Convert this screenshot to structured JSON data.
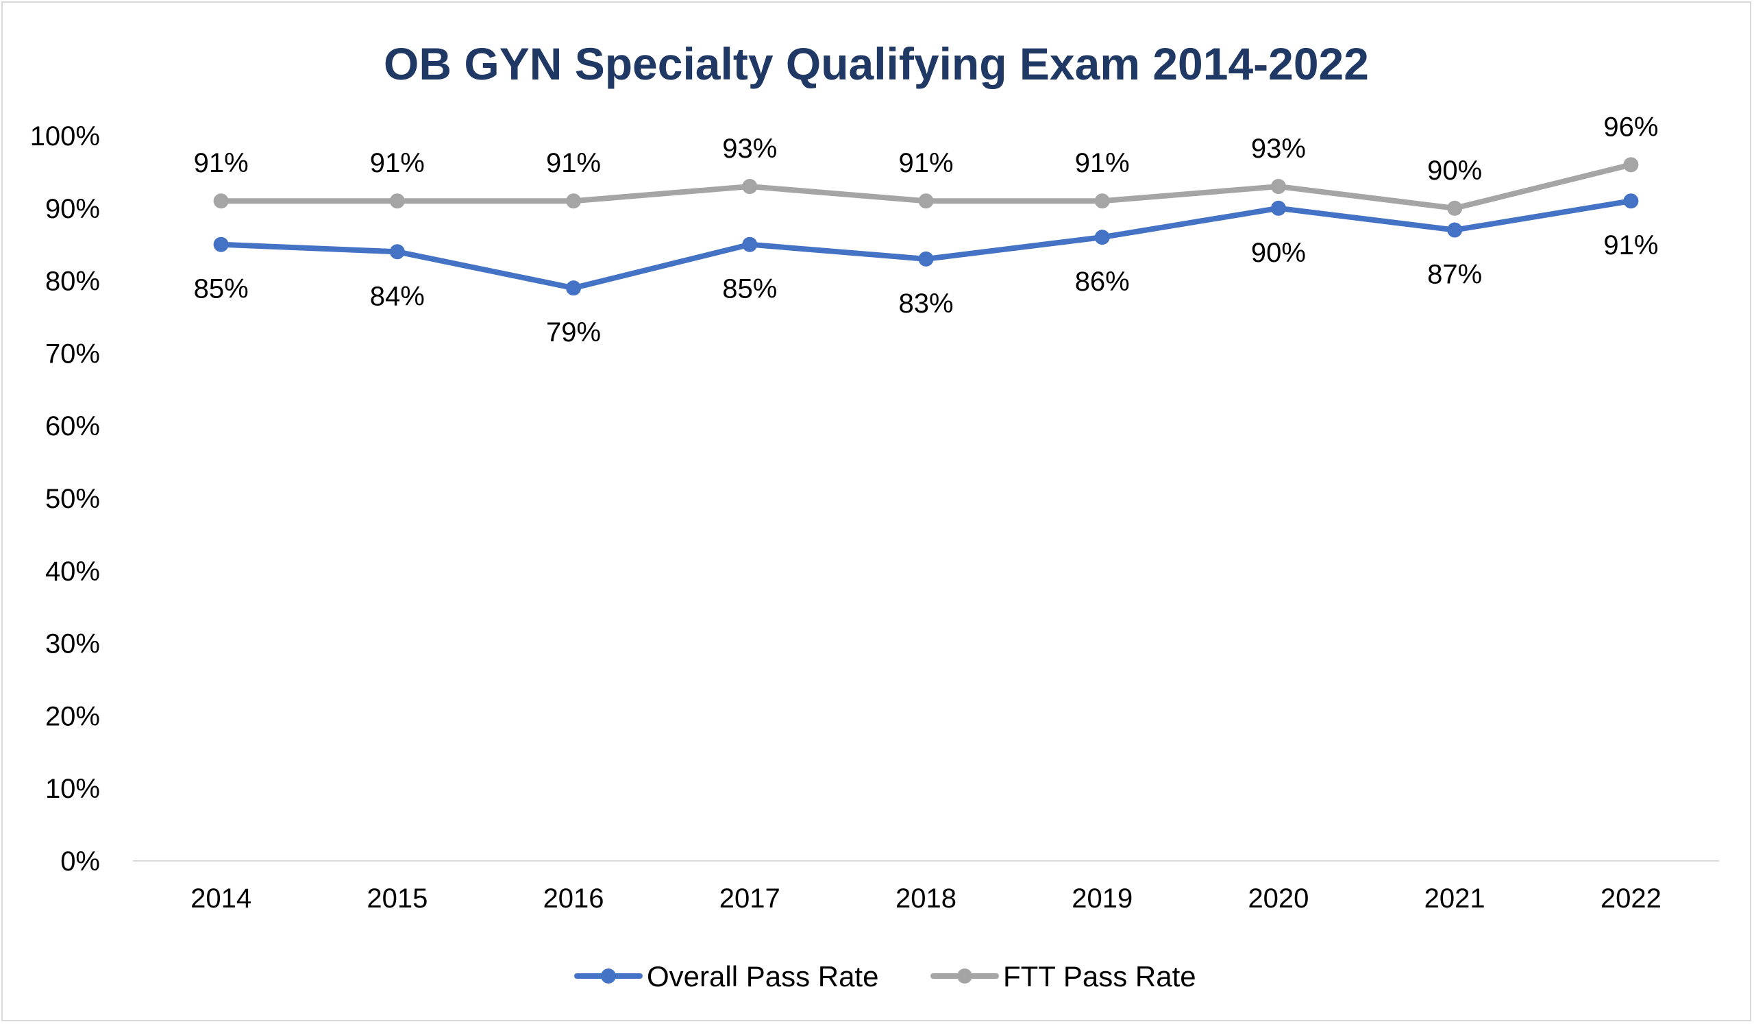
{
  "chart_data": {
    "type": "line",
    "title": "OB GYN Specialty Qualifying Exam 2014-2022",
    "xlabel": "",
    "ylabel": "",
    "categories": [
      "2014",
      "2015",
      "2016",
      "2017",
      "2018",
      "2019",
      "2020",
      "2021",
      "2022"
    ],
    "ylim": [
      0,
      100
    ],
    "yticks": [
      "0%",
      "10%",
      "20%",
      "30%",
      "40%",
      "50%",
      "60%",
      "70%",
      "80%",
      "90%",
      "100%"
    ],
    "grid": false,
    "legend_position": "bottom",
    "series": [
      {
        "name": "Overall Pass Rate",
        "color": "#4472c4",
        "values": [
          85,
          84,
          79,
          85,
          83,
          86,
          90,
          87,
          91
        ],
        "labels": [
          "85%",
          "84%",
          "79%",
          "85%",
          "83%",
          "86%",
          "90%",
          "87%",
          "91%"
        ],
        "label_position": "below"
      },
      {
        "name": "FTT Pass Rate",
        "color": "#a5a5a5",
        "values": [
          91,
          91,
          91,
          93,
          91,
          91,
          93,
          90,
          96
        ],
        "labels": [
          "91%",
          "91%",
          "91%",
          "93%",
          "91%",
          "91%",
          "93%",
          "90%",
          "96%"
        ],
        "label_position": "above"
      }
    ]
  }
}
